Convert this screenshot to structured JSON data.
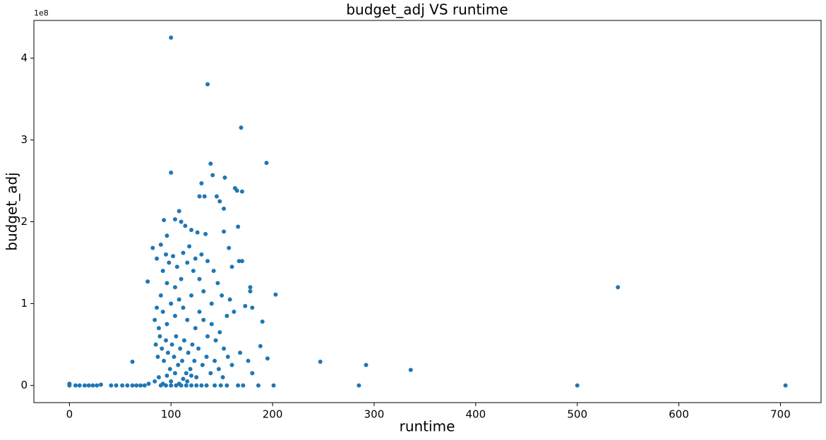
{
  "chart_data": {
    "type": "scatter",
    "title": "budget_adj VS runtime",
    "x_label": "runtime",
    "y_label": "budget_adj",
    "y_offset_label": "1e8",
    "color": "#1f77b4",
    "grid": false,
    "xlim": [
      -35,
      740
    ],
    "xticks": [
      0,
      100,
      200,
      300,
      400,
      500,
      600,
      700
    ],
    "ylim": [
      -0.21,
      4.46
    ],
    "yticks": [
      0,
      1,
      2,
      3,
      4
    ],
    "x": [
      0,
      0,
      6,
      10,
      15,
      19,
      23,
      27,
      31,
      41,
      46,
      52,
      57,
      62,
      66,
      70,
      74,
      78,
      285,
      500,
      705,
      201,
      186,
      171,
      166,
      155,
      149,
      143,
      62,
      247,
      292,
      336,
      540,
      203,
      100,
      136,
      169,
      194,
      100,
      139,
      141,
      153,
      130,
      163,
      165,
      170,
      128,
      133,
      145,
      148,
      152,
      108,
      104,
      110,
      93,
      96,
      114,
      120,
      126,
      134,
      152,
      166,
      157,
      160,
      170,
      167,
      178,
      178,
      180,
      173,
      190,
      188,
      195,
      77,
      82,
      86,
      90,
      92,
      95,
      98,
      102,
      106,
      112,
      116,
      122,
      118,
      124,
      130,
      136,
      142,
      146,
      150,
      158,
      162,
      155,
      140,
      132,
      128,
      110,
      104,
      96,
      90,
      86,
      84,
      88,
      92,
      96,
      100,
      104,
      108,
      112,
      116,
      120,
      124,
      128,
      132,
      136,
      140,
      144,
      148,
      152,
      156,
      160,
      168,
      176,
      180,
      85,
      87,
      89,
      91,
      93,
      95,
      97,
      99,
      101,
      103,
      105,
      107,
      109,
      111,
      113,
      115,
      117,
      119,
      121,
      123,
      125,
      127,
      131,
      135,
      139,
      143,
      147,
      151,
      84,
      88,
      92,
      96,
      100,
      104,
      108,
      112,
      116,
      120,
      90,
      95,
      100,
      105,
      110,
      115,
      120,
      125,
      130,
      135
    ],
    "values": [
      0.02,
      0,
      0,
      0,
      0,
      0,
      0,
      0,
      0.01,
      0,
      0,
      0,
      0,
      0,
      0,
      0,
      0,
      0.02,
      0,
      0,
      0,
      0,
      0,
      0,
      0,
      0,
      0,
      0,
      0.29,
      0.29,
      0.25,
      0.19,
      1.2,
      1.11,
      4.25,
      3.68,
      3.15,
      2.72,
      2.6,
      2.71,
      2.57,
      2.54,
      2.47,
      2.41,
      2.38,
      2.37,
      2.31,
      2.31,
      2.31,
      2.25,
      2.16,
      2.13,
      2.03,
      2.0,
      2.02,
      1.83,
      1.95,
      1.9,
      1.87,
      1.85,
      1.88,
      1.94,
      1.68,
      1.45,
      1.52,
      1.52,
      1.2,
      1.15,
      0.95,
      0.97,
      0.78,
      0.48,
      0.33,
      1.27,
      1.68,
      1.55,
      1.72,
      1.4,
      1.6,
      1.5,
      1.58,
      1.45,
      1.62,
      1.5,
      1.4,
      1.7,
      1.55,
      1.6,
      1.52,
      1.4,
      1.25,
      1.1,
      1.05,
      0.9,
      0.85,
      1.0,
      1.15,
      1.3,
      1.3,
      1.2,
      1.25,
      1.1,
      0.95,
      0.8,
      0.7,
      0.9,
      0.75,
      1.0,
      0.85,
      1.05,
      0.95,
      0.8,
      1.1,
      0.7,
      0.9,
      0.8,
      0.6,
      0.75,
      0.55,
      0.65,
      0.45,
      0.35,
      0.25,
      0.4,
      0.3,
      0.15,
      0.5,
      0.35,
      0.6,
      0.45,
      0.3,
      0.55,
      0.4,
      0.2,
      0.5,
      0.35,
      0.6,
      0.25,
      0.45,
      0.3,
      0.55,
      0.15,
      0.4,
      0.2,
      0.5,
      0.3,
      0.1,
      0.45,
      0.25,
      0.35,
      0.15,
      0.3,
      0.2,
      0.1,
      0.05,
      0.1,
      0.02,
      0.12,
      0.05,
      0.15,
      0.02,
      0.08,
      0.05,
      0.12,
      0,
      0,
      0,
      0,
      0,
      0,
      0,
      0,
      0,
      0
    ]
  }
}
